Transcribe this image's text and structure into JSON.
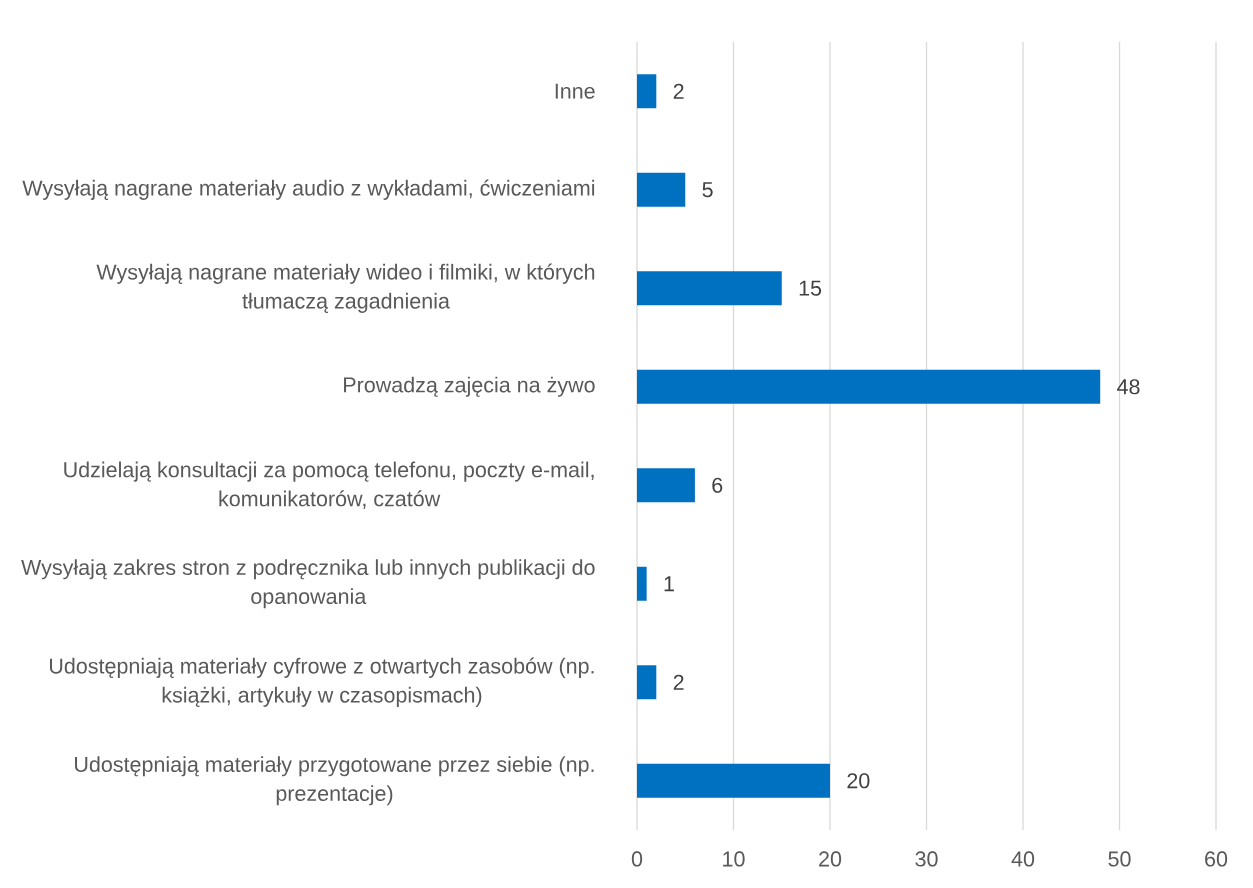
{
  "chart_data": {
    "type": "bar",
    "orientation": "horizontal",
    "categories": [
      "Inne",
      "Wysyłają nagrane materiały audio z wykładami, ćwiczeniami",
      "Wysyłają nagrane materiały wideo i filmiki, w których tłumaczą zagadnienia",
      "Prowadzą zajęcia na żywo",
      "Udzielają konsultacji za pomocą telefonu, poczty e-mail, komunikatorów, czatów",
      "Wysyłają zakres stron z podręcznika lub innych publikacji do opanowania",
      "Udostępniają materiały cyfrowe z otwartych zasobów (np. książki, artykuły w czasopismach)",
      "Udostępniają materiały przygotowane przez siebie (np. prezentacje)"
    ],
    "values": [
      2,
      5,
      15,
      48,
      6,
      1,
      2,
      20
    ],
    "color": "#0070c0",
    "xlim": [
      0,
      60
    ],
    "xticks": [
      0,
      10,
      20,
      30,
      40,
      50,
      60
    ],
    "grid": "x",
    "data_labels": true
  }
}
